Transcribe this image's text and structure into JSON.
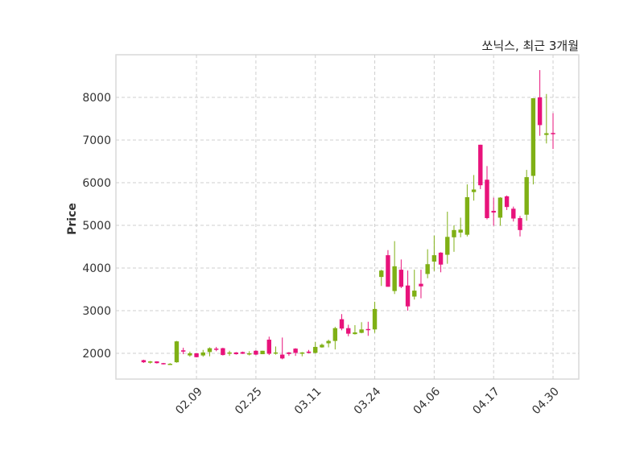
{
  "chart_data": {
    "type": "candlestick",
    "title": "쏘닉스, 최근 3개월",
    "xlabel": "",
    "ylabel": "Price",
    "ylim": [
      1396,
      9000
    ],
    "xlim": [
      -4.2,
      65.9
    ],
    "grid": true,
    "yticks": [
      2000,
      3000,
      4000,
      5000,
      6000,
      7000,
      8000
    ],
    "ytick_labels": [
      "2000",
      "3000",
      "4000",
      "5000",
      "6000",
      "7000",
      "8000"
    ],
    "xticks": [
      {
        "index": 8,
        "label": "02.09"
      },
      {
        "index": 17,
        "label": "02.25"
      },
      {
        "index": 26,
        "label": "03.11"
      },
      {
        "index": 35,
        "label": "03.24"
      },
      {
        "index": 44,
        "label": "04.06"
      },
      {
        "index": 53,
        "label": "04.17"
      },
      {
        "index": 62,
        "label": "04.30"
      }
    ],
    "colors": {
      "up": "#7fb015",
      "down": "#e8137b"
    },
    "ohlc": [
      [
        1840,
        1850,
        1775,
        1790
      ],
      [
        1780,
        1820,
        1760,
        1810
      ],
      [
        1810,
        1815,
        1760,
        1770
      ],
      [
        1770,
        1775,
        1740,
        1745
      ],
      [
        1740,
        1770,
        1730,
        1755
      ],
      [
        1790,
        2290,
        1780,
        2280
      ],
      [
        2070,
        2130,
        1980,
        2040
      ],
      [
        1950,
        2040,
        1920,
        2000
      ],
      [
        2000,
        2005,
        1905,
        1910
      ],
      [
        1950,
        2080,
        1920,
        2020
      ],
      [
        2030,
        2140,
        1930,
        2120
      ],
      [
        2110,
        2150,
        2050,
        2100
      ],
      [
        2120,
        2130,
        1950,
        1960
      ],
      [
        1990,
        2060,
        1940,
        2020
      ],
      [
        2020,
        2030,
        1970,
        1980
      ],
      [
        2030,
        2040,
        1985,
        1990
      ],
      [
        1980,
        2050,
        1950,
        2000
      ],
      [
        2060,
        2070,
        1960,
        1970
      ],
      [
        1980,
        2060,
        1980,
        2060
      ],
      [
        2320,
        2390,
        1960,
        1990
      ],
      [
        2000,
        2160,
        1970,
        2020
      ],
      [
        1970,
        2370,
        1860,
        1880
      ],
      [
        2020,
        2030,
        1940,
        1985
      ],
      [
        2110,
        2120,
        1940,
        2010
      ],
      [
        1990,
        2030,
        1930,
        2020
      ],
      [
        2040,
        2080,
        2000,
        2010
      ],
      [
        2010,
        2270,
        2000,
        2150
      ],
      [
        2140,
        2230,
        2130,
        2200
      ],
      [
        2235,
        2320,
        2140,
        2290
      ],
      [
        2290,
        2620,
        2090,
        2590
      ],
      [
        2800,
        2920,
        2540,
        2580
      ],
      [
        2590,
        2670,
        2400,
        2460
      ],
      [
        2450,
        2660,
        2440,
        2490
      ],
      [
        2480,
        2730,
        2470,
        2560
      ],
      [
        2570,
        2740,
        2410,
        2550
      ],
      [
        2560,
        3210,
        2480,
        3040
      ],
      [
        3790,
        3960,
        3580,
        3940
      ],
      [
        4300,
        4420,
        3560,
        3560
      ],
      [
        3460,
        4630,
        3390,
        4040
      ],
      [
        3960,
        4200,
        3530,
        3560
      ],
      [
        3590,
        3940,
        3000,
        3100
      ],
      [
        3330,
        3960,
        3260,
        3470
      ],
      [
        3630,
        3960,
        3290,
        3570
      ],
      [
        3860,
        4440,
        3760,
        4090
      ],
      [
        4150,
        4760,
        3930,
        4300
      ],
      [
        4360,
        4370,
        3900,
        4080
      ],
      [
        4310,
        5320,
        4100,
        4730
      ],
      [
        4720,
        5000,
        4380,
        4890
      ],
      [
        4830,
        5180,
        4720,
        4900
      ],
      [
        4780,
        5960,
        4740,
        5660
      ],
      [
        5780,
        6180,
        5580,
        5840
      ],
      [
        6890,
        6890,
        5850,
        5940
      ],
      [
        6070,
        6390,
        5140,
        5170
      ],
      [
        5340,
        5650,
        4990,
        5300
      ],
      [
        5180,
        5660,
        4990,
        5650
      ],
      [
        5680,
        5700,
        5360,
        5430
      ],
      [
        5390,
        5440,
        5090,
        5160
      ],
      [
        5170,
        5220,
        4740,
        4890
      ],
      [
        5250,
        6300,
        5110,
        6130
      ],
      [
        6160,
        7980,
        5960,
        7980
      ],
      [
        8000,
        8640,
        7100,
        7350
      ],
      [
        7120,
        8080,
        6920,
        7160
      ],
      [
        7165,
        7630,
        6790,
        7155
      ]
    ]
  }
}
